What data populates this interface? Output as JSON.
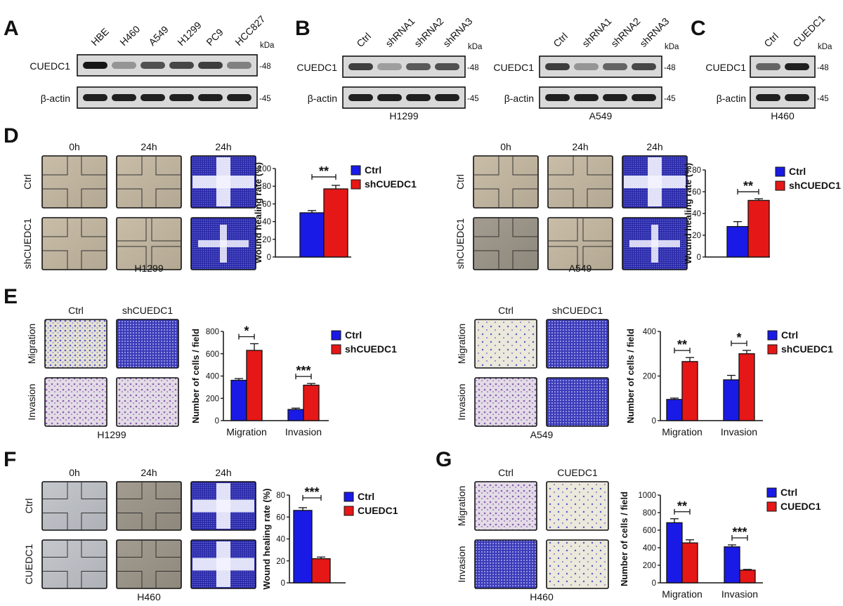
{
  "colors": {
    "ctrl": "#1a1ae6",
    "treat": "#e61717",
    "blot_bg": "#d9d9d9",
    "band": "#161616"
  },
  "panels": {
    "A": {
      "letter": "A",
      "lanes": [
        "HBE",
        "H460",
        "A549",
        "H1299",
        "PC9",
        "HCC827"
      ],
      "kda": "kDa",
      "row1": "CUEDC1",
      "row2": "β-actin",
      "w1": "-48",
      "w2": "-45",
      "band1": [
        1.0,
        0.35,
        0.7,
        0.75,
        0.8,
        0.45
      ]
    },
    "B1": {
      "letter": "B",
      "lanes": [
        "Ctrl",
        "shRNA1",
        "shRNA2",
        "shRNA3"
      ],
      "kda": "kDa",
      "row1": "CUEDC1",
      "row2": "β-actin",
      "w1": "-48",
      "w2": "-45",
      "cell": "H1299",
      "band1": [
        0.8,
        0.3,
        0.65,
        0.7
      ]
    },
    "B2": {
      "lanes": [
        "Ctrl",
        "shRNA1",
        "shRNA2",
        "shRNA3"
      ],
      "kda": "kDa",
      "row1": "CUEDC1",
      "row2": "β-actin",
      "w1": "-48",
      "w2": "-45",
      "cell": "A549",
      "band1": [
        0.8,
        0.35,
        0.6,
        0.75
      ]
    },
    "C": {
      "letter": "C",
      "lanes": [
        "Ctrl",
        "CUEDC1"
      ],
      "kda": "kDa",
      "row1": "CUEDC1",
      "row2": "β-actin",
      "w1": "-48",
      "w2": "-45",
      "cell": "H460",
      "band1": [
        0.6,
        0.95
      ]
    },
    "D": {
      "letter": "D",
      "left": {
        "cols": [
          "0h",
          "24h",
          "24h"
        ],
        "rows": [
          "Ctrl",
          "shCUEDC1"
        ],
        "cell": "H1299"
      },
      "right": {
        "cols": [
          "0h",
          "24h",
          "24h"
        ],
        "rows": [
          "Ctrl",
          "shCUEDC1"
        ],
        "cell": "A549"
      }
    },
    "E": {
      "letter": "E",
      "left": {
        "cols": [
          "Ctrl",
          "shCUEDC1"
        ],
        "rows": [
          "Migration",
          "Invasion"
        ],
        "cell": "H1299"
      },
      "right": {
        "cols": [
          "Ctrl",
          "shCUEDC1"
        ],
        "rows": [
          "Migration",
          "Invasion"
        ],
        "cell": "A549"
      }
    },
    "F": {
      "letter": "F",
      "cols": [
        "0h",
        "24h",
        "24h"
      ],
      "rows": [
        "Ctrl",
        "CUEDC1"
      ],
      "cell": "H460"
    },
    "G": {
      "letter": "G",
      "cols": [
        "Ctrl",
        "CUEDC1"
      ],
      "rows": [
        "Migration",
        "Invasion"
      ],
      "cell": "H460"
    }
  },
  "chart_data": [
    {
      "id": "D-H1299",
      "type": "bar",
      "ylabel": "Wound healing rate (%)",
      "ylim": [
        0,
        100
      ],
      "yticks": [
        0,
        20,
        40,
        60,
        80,
        100
      ],
      "categories": [
        ""
      ],
      "series": [
        {
          "name": "Ctrl",
          "values": [
            50
          ],
          "err": [
            2.5
          ]
        },
        {
          "name": "shCUEDC1",
          "values": [
            77
          ],
          "err": [
            4
          ]
        }
      ],
      "sig": [
        "**"
      ],
      "legend": "right"
    },
    {
      "id": "D-A549",
      "type": "bar",
      "ylabel": "Wound healing rate (%)",
      "ylim": [
        0,
        80
      ],
      "yticks": [
        0,
        20,
        40,
        60,
        80
      ],
      "categories": [
        ""
      ],
      "series": [
        {
          "name": "Ctrl",
          "values": [
            28
          ],
          "err": [
            4.5
          ]
        },
        {
          "name": "shCUEDC1",
          "values": [
            52
          ],
          "err": [
            1.5
          ]
        }
      ],
      "sig": [
        "**"
      ],
      "legend": "right"
    },
    {
      "id": "E-H1299",
      "type": "bar",
      "ylabel": "Number of cells / field",
      "ylim": [
        0,
        800
      ],
      "yticks": [
        0,
        200,
        400,
        600,
        800
      ],
      "categories": [
        "Migration",
        "Invasion"
      ],
      "series": [
        {
          "name": "Ctrl",
          "values": [
            362,
            100
          ],
          "err": [
            15,
            12
          ]
        },
        {
          "name": "shCUEDC1",
          "values": [
            630,
            318
          ],
          "err": [
            60,
            15
          ]
        }
      ],
      "sig": [
        "*",
        "***"
      ],
      "legend": "right"
    },
    {
      "id": "E-A549",
      "type": "bar",
      "ylabel": "Number of cells / field",
      "ylim": [
        0,
        400
      ],
      "yticks": [
        0,
        200,
        400
      ],
      "categories": [
        "Migration",
        "Invasion"
      ],
      "series": [
        {
          "name": "Ctrl",
          "values": [
            95,
            183
          ],
          "err": [
            6,
            20
          ]
        },
        {
          "name": "shCUEDC1",
          "values": [
            265,
            300
          ],
          "err": [
            18,
            15
          ]
        }
      ],
      "sig": [
        "**",
        "*"
      ],
      "legend": "right"
    },
    {
      "id": "F-H460",
      "type": "bar",
      "ylabel": "Wound healing rate (%)",
      "ylim": [
        0,
        80
      ],
      "yticks": [
        0,
        20,
        40,
        60,
        80
      ],
      "categories": [
        ""
      ],
      "series": [
        {
          "name": "Ctrl",
          "values": [
            66
          ],
          "err": [
            2.5
          ]
        },
        {
          "name": "CUEDC1",
          "values": [
            22
          ],
          "err": [
            1.5
          ]
        }
      ],
      "sig": [
        "***"
      ],
      "legend": "right"
    },
    {
      "id": "G-H460",
      "type": "bar",
      "ylabel": "Number of cells / field",
      "ylim": [
        0,
        1000
      ],
      "yticks": [
        0,
        200,
        400,
        600,
        800,
        1000
      ],
      "categories": [
        "Migration",
        "Invasion"
      ],
      "series": [
        {
          "name": "Ctrl",
          "values": [
            685,
            410
          ],
          "err": [
            45,
            22
          ]
        },
        {
          "name": "CUEDC1",
          "values": [
            455,
            145
          ],
          "err": [
            35,
            8
          ]
        }
      ],
      "sig": [
        "**",
        "***"
      ],
      "legend": "right"
    }
  ]
}
